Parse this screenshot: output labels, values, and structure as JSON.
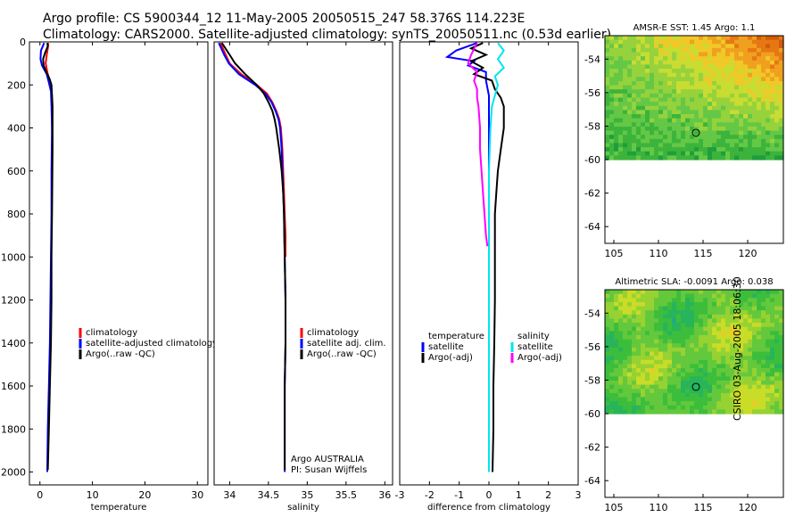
{
  "header": {
    "line1": "Argo profile: CS 5900344_12 11-May-2005 20050515_247 58.376S 114.223E",
    "line2": "Climatology: CARS2000. Satellite-adjusted climatology: synTS_20050511.nc (0.53d earlier)"
  },
  "colors": {
    "climatology": "#ff0000",
    "satellite": "#0000ff",
    "argo": "#000000",
    "sal_satellite": "#00e5ee",
    "sal_argo": "#ff00ff"
  },
  "chart_data": [
    {
      "type": "line",
      "title": "",
      "xlabel": "temperature",
      "ylabel": "",
      "xlim": [
        -2,
        32
      ],
      "ylim": [
        2060,
        0
      ],
      "xticks": [
        "0",
        "10",
        "20",
        "30"
      ],
      "xtick_values": [
        0,
        10,
        20,
        30
      ],
      "yticks": [
        "0",
        "200",
        "400",
        "600",
        "800",
        "1000",
        "1200",
        "1400",
        "1600",
        "1800",
        "2000"
      ],
      "ytick_values": [
        0,
        200,
        400,
        600,
        800,
        1000,
        1200,
        1400,
        1600,
        1800,
        2000
      ],
      "legend": [
        "climatology",
        "satellite-adjusted climatology",
        "Argo(..raw -QC)"
      ],
      "series": [
        {
          "name": "climatology",
          "color": "#ff0000",
          "points": [
            [
              1.6,
              5
            ],
            [
              1.5,
              30
            ],
            [
              1.3,
              60
            ],
            [
              1.1,
              100
            ],
            [
              1.4,
              140
            ],
            [
              1.8,
              180
            ],
            [
              2.2,
              220
            ],
            [
              2.3,
              260
            ],
            [
              2.3,
              300
            ],
            [
              2.3,
              420
            ]
          ]
        },
        {
          "name": "satellite-adjusted climatology",
          "color": "#0000ff",
          "points": [
            [
              0.8,
              5
            ],
            [
              0.2,
              40
            ],
            [
              0.1,
              80
            ],
            [
              0.4,
              110
            ],
            [
              1.3,
              150
            ],
            [
              1.7,
              190
            ],
            [
              2.1,
              230
            ],
            [
              2.2,
              300
            ],
            [
              2.3,
              400
            ],
            [
              2.2,
              600
            ],
            [
              2.2,
              800
            ],
            [
              2.1,
              1000
            ],
            [
              2.0,
              1200
            ],
            [
              1.9,
              1400
            ],
            [
              1.7,
              1600
            ],
            [
              1.5,
              1800
            ],
            [
              1.4,
              2000
            ]
          ]
        },
        {
          "name": "Argo(..raw -QC)",
          "color": "#000000",
          "points": [
            [
              1.4,
              5
            ],
            [
              1.5,
              20
            ],
            [
              1.0,
              50
            ],
            [
              0.6,
              80
            ],
            [
              0.7,
              110
            ],
            [
              1.2,
              140
            ],
            [
              1.8,
              170
            ],
            [
              2.2,
              200
            ],
            [
              2.3,
              250
            ],
            [
              2.4,
              300
            ],
            [
              2.4,
              500
            ],
            [
              2.3,
              800
            ],
            [
              2.2,
              1000
            ],
            [
              2.2,
              1200
            ],
            [
              2.1,
              1400
            ],
            [
              1.9,
              1600
            ],
            [
              1.7,
              1800
            ],
            [
              1.5,
              1990
            ]
          ]
        }
      ]
    },
    {
      "type": "line",
      "title": "",
      "xlabel": "salinity",
      "ylabel": "",
      "xlim": [
        33.8,
        36.1
      ],
      "ylim": [
        2060,
        0
      ],
      "xticks": [
        "34",
        "34.5",
        "35",
        "35.5",
        "36"
      ],
      "xtick_values": [
        34,
        34.5,
        35,
        35.5,
        36
      ],
      "legend": [
        "climatology",
        "satellite adj. clim.",
        "Argo(..raw -QC)"
      ],
      "annotations": [
        "Argo AUSTRALIA",
        "PI: Susan Wijffels"
      ],
      "series": [
        {
          "name": "climatology",
          "color": "#ff0000",
          "points": [
            [
              33.88,
              5
            ],
            [
              33.95,
              60
            ],
            [
              34.0,
              100
            ],
            [
              34.15,
              150
            ],
            [
              34.35,
              200
            ],
            [
              34.48,
              240
            ],
            [
              34.55,
              280
            ],
            [
              34.6,
              320
            ],
            [
              34.64,
              360
            ],
            [
              34.66,
              400
            ],
            [
              34.67,
              450
            ],
            [
              34.68,
              500
            ],
            [
              34.69,
              600
            ],
            [
              34.7,
              700
            ],
            [
              34.71,
              800
            ],
            [
              34.72,
              900
            ],
            [
              34.72,
              1000
            ]
          ]
        },
        {
          "name": "satellite adj. clim.",
          "color": "#0000ff",
          "points": [
            [
              33.86,
              5
            ],
            [
              33.93,
              60
            ],
            [
              33.99,
              100
            ],
            [
              34.12,
              150
            ],
            [
              34.33,
              200
            ],
            [
              34.46,
              240
            ],
            [
              34.54,
              280
            ],
            [
              34.59,
              320
            ],
            [
              34.63,
              360
            ],
            [
              34.65,
              400
            ],
            [
              34.66,
              450
            ],
            [
              34.67,
              500
            ],
            [
              34.68,
              600
            ],
            [
              34.69,
              700
            ],
            [
              34.7,
              800
            ],
            [
              34.71,
              1000
            ],
            [
              34.72,
              1200
            ],
            [
              34.72,
              1400
            ],
            [
              34.71,
              1600
            ],
            [
              34.71,
              1800
            ],
            [
              34.71,
              2000
            ]
          ]
        },
        {
          "name": "Argo(..raw -QC)",
          "color": "#000000",
          "points": [
            [
              33.9,
              5
            ],
            [
              34.0,
              60
            ],
            [
              34.07,
              100
            ],
            [
              34.2,
              150
            ],
            [
              34.35,
              200
            ],
            [
              34.44,
              240
            ],
            [
              34.5,
              280
            ],
            [
              34.55,
              320
            ],
            [
              34.58,
              360
            ],
            [
              34.6,
              400
            ],
            [
              34.62,
              450
            ],
            [
              34.64,
              500
            ],
            [
              34.67,
              600
            ],
            [
              34.69,
              700
            ],
            [
              34.7,
              800
            ],
            [
              34.71,
              1000
            ],
            [
              34.72,
              1200
            ],
            [
              34.72,
              1400
            ],
            [
              34.71,
              1600
            ],
            [
              34.71,
              1800
            ],
            [
              34.71,
              1990
            ]
          ]
        }
      ]
    },
    {
      "type": "line",
      "title": "",
      "xlabel": "difference from climatology",
      "ylabel": "",
      "xlim": [
        -3,
        3
      ],
      "ylim": [
        2060,
        0
      ],
      "xticks": [
        "-3",
        "-2",
        "-1",
        "0",
        "1",
        "2",
        "3"
      ],
      "xtick_values": [
        -3,
        -2,
        -1,
        0,
        1,
        2,
        3
      ],
      "legend_temperature": [
        "temperature",
        "satellite",
        "Argo(-adj)"
      ],
      "legend_salinity": [
        "salinity",
        "satellite",
        "Argo(-adj)"
      ],
      "series": [
        {
          "name": "temperature satellite",
          "color": "#0000ff",
          "points": [
            [
              -0.4,
              5
            ],
            [
              -1.1,
              40
            ],
            [
              -1.4,
              70
            ],
            [
              -0.5,
              90
            ],
            [
              -0.7,
              110
            ],
            [
              -0.1,
              140
            ],
            [
              -0.1,
              180
            ],
            [
              0.0,
              250
            ],
            [
              0.0,
              400
            ],
            [
              0.0,
              600
            ],
            [
              0.0,
              800
            ],
            [
              0.0,
              1000
            ],
            [
              0.0,
              1200
            ],
            [
              0.0,
              1400
            ],
            [
              0.0,
              1600
            ],
            [
              0.0,
              1800
            ],
            [
              0.0,
              2000
            ]
          ]
        },
        {
          "name": "temperature Argo(-adj)",
          "color": "#000000",
          "points": [
            [
              -0.2,
              5
            ],
            [
              -0.6,
              30
            ],
            [
              -0.1,
              60
            ],
            [
              -0.6,
              90
            ],
            [
              -0.2,
              120
            ],
            [
              -0.5,
              150
            ],
            [
              0.1,
              180
            ],
            [
              0.2,
              220
            ],
            [
              0.4,
              260
            ],
            [
              0.5,
              300
            ],
            [
              0.5,
              400
            ],
            [
              0.4,
              500
            ],
            [
              0.3,
              600
            ],
            [
              0.25,
              700
            ],
            [
              0.2,
              800
            ],
            [
              0.2,
              1000
            ],
            [
              0.2,
              1200
            ],
            [
              0.18,
              1400
            ],
            [
              0.15,
              1600
            ],
            [
              0.15,
              1800
            ],
            [
              0.12,
              2000
            ]
          ]
        },
        {
          "name": "salinity satellite",
          "color": "#00e5ee",
          "points": [
            [
              0.3,
              5
            ],
            [
              0.5,
              40
            ],
            [
              0.3,
              80
            ],
            [
              0.5,
              120
            ],
            [
              0.2,
              160
            ],
            [
              0.3,
              200
            ],
            [
              0.2,
              250
            ],
            [
              0.1,
              300
            ],
            [
              0.05,
              400
            ],
            [
              0.0,
              600
            ],
            [
              0.0,
              800
            ],
            [
              0.0,
              1000
            ],
            [
              0.0,
              1200
            ],
            [
              0.0,
              1400
            ],
            [
              0.0,
              1600
            ],
            [
              0.0,
              1800
            ],
            [
              0.0,
              2000
            ]
          ]
        },
        {
          "name": "salinity Argo(-adj)",
          "color": "#ff00ff",
          "points": [
            [
              -0.4,
              5
            ],
            [
              -0.6,
              60
            ],
            [
              -0.7,
              100
            ],
            [
              -0.4,
              140
            ],
            [
              -0.5,
              180
            ],
            [
              -0.4,
              220
            ],
            [
              -0.4,
              260
            ],
            [
              -0.35,
              300
            ],
            [
              -0.3,
              400
            ],
            [
              -0.3,
              500
            ],
            [
              -0.25,
              600
            ],
            [
              -0.2,
              700
            ],
            [
              -0.15,
              800
            ],
            [
              -0.1,
              900
            ],
            [
              -0.05,
              950
            ]
          ]
        }
      ]
    },
    {
      "type": "heatmap",
      "title": "AMSR-E SST: 1.45 Argo: 1.1",
      "xlim": [
        104,
        124
      ],
      "ylim": [
        -65,
        -52.6
      ],
      "data_ylim": [
        -60,
        -52.6
      ],
      "xticks": [
        "105",
        "110",
        "115",
        "120"
      ],
      "xtick_values": [
        105,
        110,
        115,
        120
      ],
      "yticks": [
        "-54",
        "-56",
        "-58",
        "-60",
        "-62",
        "-64"
      ],
      "ytick_values": [
        -54,
        -56,
        -58,
        -60,
        -62,
        -64
      ],
      "marker": {
        "lon": 114.2,
        "lat": -58.4
      },
      "palette": [
        "#1e9e3c",
        "#3cb43c",
        "#64c846",
        "#96d23c",
        "#c8dc32",
        "#f0c828",
        "#f0a01e",
        "#e67814",
        "#d25a0a"
      ]
    },
    {
      "type": "heatmap",
      "title": "Altimetric SLA: -0.0091 Argo: 0.038",
      "xlim": [
        104,
        124
      ],
      "ylim": [
        -65,
        -52.6
      ],
      "data_ylim": [
        -60,
        -52.6
      ],
      "xticks": [
        "105",
        "110",
        "115",
        "120"
      ],
      "xtick_values": [
        105,
        110,
        115,
        120
      ],
      "yticks": [
        "-54",
        "-56",
        "-58",
        "-60",
        "-62",
        "-64"
      ],
      "ytick_values": [
        -54,
        -56,
        -58,
        -60,
        -62,
        -64
      ],
      "marker": {
        "lon": 114.2,
        "lat": -58.4
      },
      "palette": [
        "#1eaa8c",
        "#28b45a",
        "#3cbe3c",
        "#64c83c",
        "#96d232",
        "#c8dc28",
        "#f0c828",
        "#f0a020"
      ]
    }
  ],
  "footer": {
    "stamp": "CSIRO 03-Aug-2005 18:06:30"
  }
}
